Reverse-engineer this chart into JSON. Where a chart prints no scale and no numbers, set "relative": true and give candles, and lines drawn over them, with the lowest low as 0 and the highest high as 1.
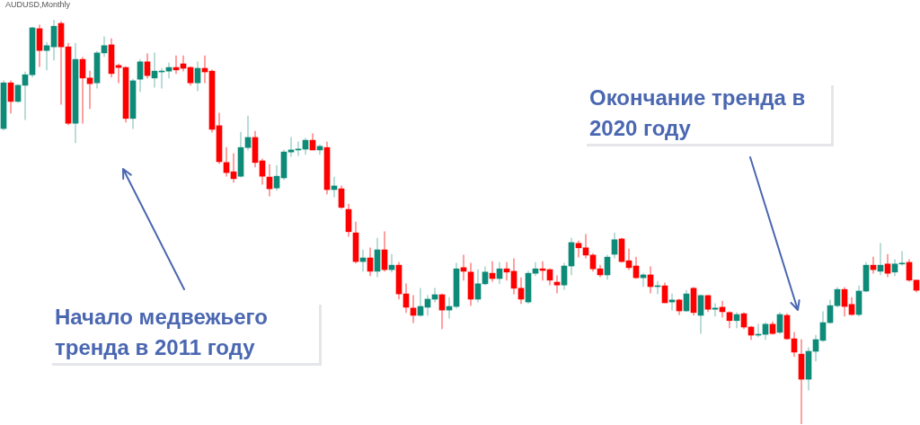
{
  "chart_data": {
    "type": "candlestick",
    "title": "AUDUSD,Monthly",
    "relative": true,
    "annotations": [
      "Начало медвежьего тренда в 2011 году",
      "Окончание тренда в 2020 году"
    ],
    "categories": [
      null,
      null,
      null,
      null,
      null,
      null,
      null,
      null,
      null,
      null,
      null,
      null,
      null,
      null,
      null,
      null,
      null,
      null,
      null,
      null,
      null,
      null,
      null,
      null,
      null,
      null,
      null,
      null,
      null,
      null,
      null,
      null,
      null,
      null,
      null,
      null,
      null,
      null,
      null,
      null,
      null,
      null,
      null,
      null,
      null,
      null,
      null,
      null,
      null,
      null,
      null,
      null,
      null,
      null,
      null,
      null,
      null,
      null,
      null,
      null,
      null,
      null,
      null,
      null,
      null,
      null,
      null,
      null,
      null,
      null,
      null,
      null,
      null,
      null,
      null,
      null,
      null,
      null,
      null,
      null,
      null,
      null,
      null,
      null,
      null,
      null,
      null,
      null,
      null,
      null,
      null,
      null,
      null,
      null,
      null,
      null,
      null,
      null,
      null,
      null,
      null,
      null,
      null,
      null,
      null,
      null,
      null,
      null,
      null,
      null,
      null,
      null,
      null,
      null,
      null,
      null,
      null,
      null,
      null,
      null,
      null,
      null,
      null,
      null,
      null,
      null,
      null,
      null
    ],
    "ohlc": [
      [
        0.731,
        0.849,
        0.727,
        0.844
      ],
      [
        0.844,
        0.849,
        0.769,
        0.798
      ],
      [
        0.798,
        0.84,
        0.796,
        0.838
      ],
      [
        0.838,
        0.871,
        0.753,
        0.864
      ],
      [
        0.864,
        0.982,
        0.858,
        0.98
      ],
      [
        0.978,
        0.987,
        0.884,
        0.924
      ],
      [
        0.924,
        0.944,
        0.876,
        0.936
      ],
      [
        0.933,
        1,
        0.9,
        0.984
      ],
      [
        0.991,
        0.996,
        0.791,
        0.933
      ],
      [
        0.933,
        0.942,
        0.74,
        0.744
      ],
      [
        0.744,
        0.942,
        0.696,
        0.902
      ],
      [
        0.902,
        0.907,
        0.744,
        0.856
      ],
      [
        0.856,
        0.873,
        0.78,
        0.842
      ],
      [
        0.844,
        0.922,
        0.831,
        0.918
      ],
      [
        0.918,
        0.958,
        0.909,
        0.936
      ],
      [
        0.938,
        0.953,
        0.858,
        0.867
      ],
      [
        0.887,
        0.891,
        0.844,
        0.882
      ],
      [
        0.882,
        0.884,
        0.747,
        0.756
      ],
      [
        0.756,
        0.853,
        0.731,
        0.849
      ],
      [
        0.853,
        0.902,
        0.822,
        0.896
      ],
      [
        0.896,
        0.916,
        0.856,
        0.862
      ],
      [
        0.856,
        0.918,
        0.833,
        0.873
      ],
      [
        0.871,
        0.88,
        0.831,
        0.873
      ],
      [
        0.873,
        0.893,
        0.856,
        0.882
      ],
      [
        0.882,
        0.911,
        0.867,
        0.876
      ],
      [
        0.891,
        0.911,
        0.873,
        0.88
      ],
      [
        0.882,
        0.884,
        0.838,
        0.844
      ],
      [
        0.844,
        0.896,
        0.824,
        0.88
      ],
      [
        0.88,
        0.911,
        0.844,
        0.871
      ],
      [
        0.873,
        0.876,
        0.722,
        0.729
      ],
      [
        0.738,
        0.769,
        0.644,
        0.649
      ],
      [
        0.647,
        0.684,
        0.613,
        0.622
      ],
      [
        0.624,
        0.669,
        0.598,
        0.607
      ],
      [
        0.613,
        0.722,
        0.611,
        0.684
      ],
      [
        0.684,
        0.762,
        0.678,
        0.709
      ],
      [
        0.709,
        0.724,
        0.636,
        0.647
      ],
      [
        0.651,
        0.656,
        0.593,
        0.613
      ],
      [
        0.611,
        0.642,
        0.564,
        0.582
      ],
      [
        0.584,
        0.64,
        0.578,
        0.613
      ],
      [
        0.609,
        0.678,
        0.604,
        0.673
      ],
      [
        0.673,
        0.709,
        0.662,
        0.678
      ],
      [
        0.678,
        0.698,
        0.664,
        0.68
      ],
      [
        0.68,
        0.707,
        0.667,
        0.702
      ],
      [
        0.702,
        0.718,
        0.678,
        0.678
      ],
      [
        0.678,
        0.691,
        0.667,
        0.687
      ],
      [
        0.684,
        0.698,
        0.569,
        0.58
      ],
      [
        0.58,
        0.611,
        0.562,
        0.589
      ],
      [
        0.582,
        0.589,
        0.533,
        0.536
      ],
      [
        0.531,
        0.544,
        0.464,
        0.476
      ],
      [
        0.473,
        0.5,
        0.398,
        0.402
      ],
      [
        0.402,
        0.431,
        0.378,
        0.411
      ],
      [
        0.411,
        0.436,
        0.367,
        0.378
      ],
      [
        0.378,
        0.46,
        0.364,
        0.431
      ],
      [
        0.431,
        0.476,
        0.378,
        0.382
      ],
      [
        0.382,
        0.42,
        0.376,
        0.393
      ],
      [
        0.393,
        0.4,
        0.309,
        0.322
      ],
      [
        0.322,
        0.347,
        0.276,
        0.289
      ],
      [
        0.287,
        0.318,
        0.251,
        0.269
      ],
      [
        0.269,
        0.336,
        0.267,
        0.291
      ],
      [
        0.289,
        0.318,
        0.269,
        0.309
      ],
      [
        0.309,
        0.336,
        0.302,
        0.32
      ],
      [
        0.32,
        0.322,
        0.236,
        0.282
      ],
      [
        0.282,
        0.313,
        0.262,
        0.291
      ],
      [
        0.291,
        0.398,
        0.287,
        0.384
      ],
      [
        0.387,
        0.418,
        0.356,
        0.378
      ],
      [
        0.376,
        0.398,
        0.293,
        0.309
      ],
      [
        0.309,
        0.382,
        0.302,
        0.347
      ],
      [
        0.347,
        0.389,
        0.344,
        0.376
      ],
      [
        0.373,
        0.402,
        0.353,
        0.36
      ],
      [
        0.36,
        0.4,
        0.347,
        0.384
      ],
      [
        0.384,
        0.4,
        0.356,
        0.376
      ],
      [
        0.378,
        0.409,
        0.322,
        0.336
      ],
      [
        0.336,
        0.362,
        0.298,
        0.309
      ],
      [
        0.302,
        0.378,
        0.298,
        0.373
      ],
      [
        0.373,
        0.4,
        0.367,
        0.384
      ],
      [
        0.384,
        0.402,
        0.356,
        0.38
      ],
      [
        0.382,
        0.384,
        0.344,
        0.356
      ],
      [
        0.351,
        0.367,
        0.324,
        0.344
      ],
      [
        0.344,
        0.398,
        0.333,
        0.391
      ],
      [
        0.391,
        0.46,
        0.369,
        0.449
      ],
      [
        0.447,
        0.453,
        0.413,
        0.436
      ],
      [
        0.436,
        0.469,
        0.411,
        0.418
      ],
      [
        0.418,
        0.422,
        0.378,
        0.384
      ],
      [
        0.384,
        0.393,
        0.364,
        0.369
      ],
      [
        0.369,
        0.418,
        0.358,
        0.413
      ],
      [
        0.42,
        0.473,
        0.411,
        0.456
      ],
      [
        0.458,
        0.46,
        0.4,
        0.402
      ],
      [
        0.404,
        0.433,
        0.382,
        0.387
      ],
      [
        0.391,
        0.413,
        0.36,
        0.362
      ],
      [
        0.362,
        0.373,
        0.34,
        0.369
      ],
      [
        0.369,
        0.389,
        0.324,
        0.34
      ],
      [
        0.34,
        0.353,
        0.322,
        0.342
      ],
      [
        0.342,
        0.349,
        0.3,
        0.3
      ],
      [
        0.302,
        0.322,
        0.282,
        0.307
      ],
      [
        0.307,
        0.309,
        0.271,
        0.28
      ],
      [
        0.28,
        0.331,
        0.278,
        0.322
      ],
      [
        0.336,
        0.338,
        0.269,
        0.276
      ],
      [
        0.269,
        0.32,
        0.224,
        0.318
      ],
      [
        0.318,
        0.318,
        0.278,
        0.284
      ],
      [
        0.284,
        0.298,
        0.267,
        0.287
      ],
      [
        0.289,
        0.304,
        0.264,
        0.278
      ],
      [
        0.276,
        0.278,
        0.238,
        0.256
      ],
      [
        0.256,
        0.276,
        0.238,
        0.271
      ],
      [
        0.273,
        0.276,
        0.236,
        0.24
      ],
      [
        0.24,
        0.242,
        0.209,
        0.22
      ],
      [
        0.22,
        0.247,
        0.216,
        0.222
      ],
      [
        0.222,
        0.251,
        0.209,
        0.247
      ],
      [
        0.247,
        0.253,
        0.222,
        0.224
      ],
      [
        0.227,
        0.276,
        0.224,
        0.271
      ],
      [
        0.269,
        0.273,
        0.209,
        0.211
      ],
      [
        0.211,
        0.227,
        0.167,
        0.178
      ],
      [
        0.173,
        0.209,
        0,
        0.111
      ],
      [
        0.111,
        0.189,
        0.084,
        0.18
      ],
      [
        0.18,
        0.22,
        0.156,
        0.209
      ],
      [
        0.207,
        0.278,
        0.204,
        0.251
      ],
      [
        0.251,
        0.307,
        0.249,
        0.293
      ],
      [
        0.293,
        0.338,
        0.289,
        0.333
      ],
      [
        0.333,
        0.338,
        0.267,
        0.291
      ],
      [
        0.296,
        0.313,
        0.269,
        0.271
      ],
      [
        0.271,
        0.342,
        0.267,
        0.329
      ],
      [
        0.329,
        0.4,
        0.327,
        0.393
      ],
      [
        0.393,
        0.413,
        0.373,
        0.382
      ],
      [
        0.378,
        0.447,
        0.369,
        0.393
      ],
      [
        0.396,
        0.42,
        0.364,
        0.373
      ],
      [
        0.376,
        0.407,
        0.367,
        0.396
      ],
      [
        0.396,
        0.427,
        0.393,
        0.398
      ],
      [
        0.4,
        0.407,
        0.353,
        0.356
      ],
      [
        0.356,
        0.356,
        0.327,
        0.331
      ]
    ]
  }
}
